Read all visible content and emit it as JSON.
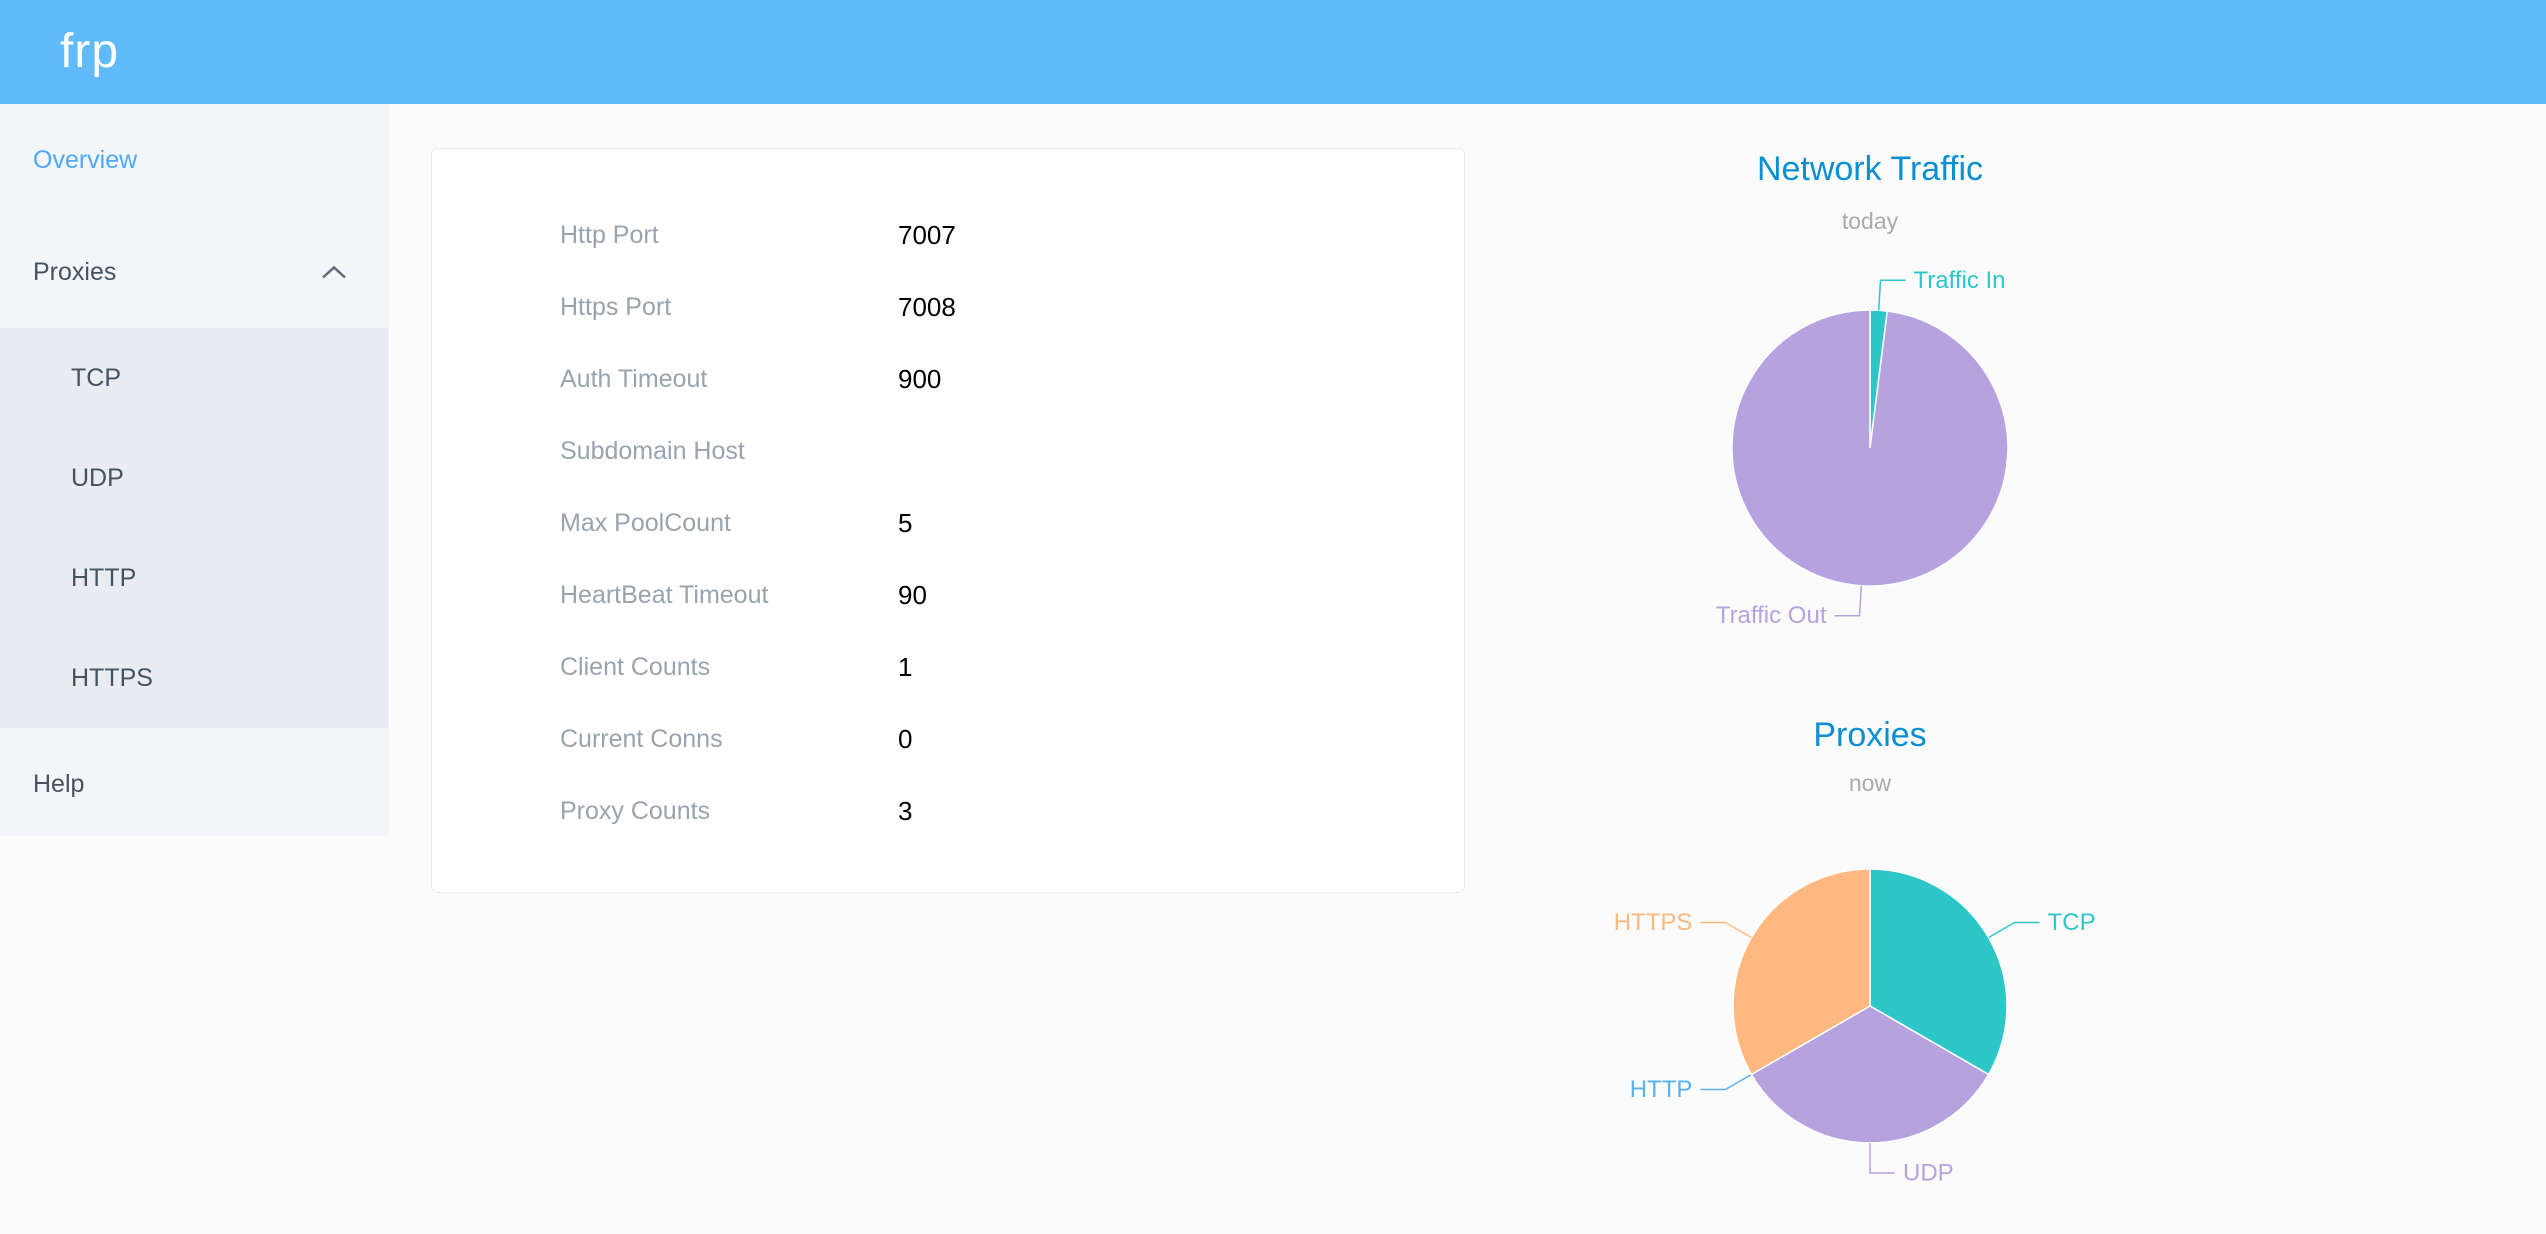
{
  "header": {
    "logo": "frp",
    "background_color": "#61bbfa"
  },
  "sidebar": {
    "items": [
      {
        "label": "Overview",
        "active": true
      },
      {
        "label": "Proxies",
        "expanded": true
      },
      {
        "label": "Help",
        "active": false
      }
    ],
    "proxy_types": [
      "TCP",
      "UDP",
      "HTTP",
      "HTTPS"
    ],
    "active_color": "#4da9f7"
  },
  "overview_panel": {
    "rows": [
      {
        "label": "Http Port",
        "value": "7007"
      },
      {
        "label": "Https Port",
        "value": "7008"
      },
      {
        "label": "Auth Timeout",
        "value": "900"
      },
      {
        "label": "Subdomain Host",
        "value": ""
      },
      {
        "label": "Max PoolCount",
        "value": "5"
      },
      {
        "label": "HeartBeat Timeout",
        "value": "90"
      },
      {
        "label": "Client Counts",
        "value": "1"
      },
      {
        "label": "Current Conns",
        "value": "0"
      },
      {
        "label": "Proxy Counts",
        "value": "3"
      }
    ]
  },
  "chart_data": [
    {
      "type": "pie",
      "title": "Network Traffic",
      "subtitle": "today",
      "value_unit": "percent_of_total_estimated",
      "series": [
        {
          "name": "Traffic In",
          "value": 2,
          "color": "#2ec7c9"
        },
        {
          "name": "Traffic Out",
          "value": 98,
          "color": "#b6a2de"
        }
      ],
      "title_color": "#0a8fd4",
      "subtitle_color": "#aaaaaa",
      "labels": "outside-with-leader-lines",
      "legend": "none"
    },
    {
      "type": "pie",
      "title": "Proxies",
      "subtitle": "now",
      "value_unit": "proxy_count",
      "series": [
        {
          "name": "TCP",
          "value": 1,
          "color": "#2ec7c9"
        },
        {
          "name": "UDP",
          "value": 1,
          "color": "#b6a2de"
        },
        {
          "name": "HTTP",
          "value": 0,
          "color": "#5ab1ef"
        },
        {
          "name": "HTTPS",
          "value": 1,
          "color": "#ffb980"
        }
      ],
      "title_color": "#0a8fd4",
      "subtitle_color": "#aaaaaa",
      "labels": "outside-with-leader-lines",
      "legend": "none"
    }
  ]
}
